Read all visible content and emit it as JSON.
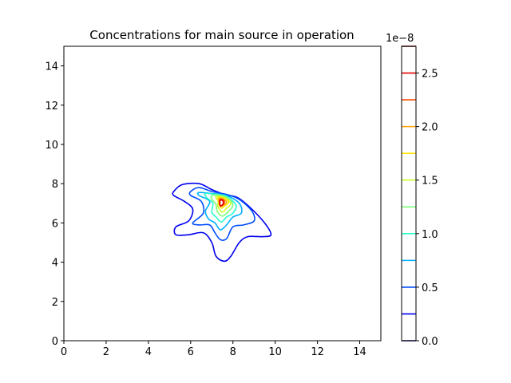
{
  "chart_data": {
    "type": "contour",
    "title": "Concentrations for main source in operation",
    "xlabel": "",
    "ylabel": "",
    "xlim": [
      0,
      15
    ],
    "ylim": [
      0,
      15
    ],
    "x_ticks": [
      0,
      2,
      4,
      6,
      8,
      10,
      12,
      14
    ],
    "y_ticks": [
      0,
      2,
      4,
      6,
      8,
      10,
      12,
      14
    ],
    "grid": false,
    "colorbar": {
      "offset_label": "1e−8",
      "ticks": [
        "0.0",
        "0.5",
        "1.0",
        "1.5",
        "2.0",
        "2.5"
      ],
      "tick_values": [
        0.0,
        0.5,
        1.0,
        1.5,
        2.0,
        2.5
      ],
      "range": [
        0.0,
        2.75
      ],
      "levels": [
        0.0,
        0.25,
        0.5,
        0.75,
        1.0,
        1.25,
        1.5,
        1.75,
        2.0,
        2.25,
        2.5,
        2.75
      ],
      "level_colors": [
        "#00007f",
        "#0000f1",
        "#004cff",
        "#00b0ff",
        "#29ffce",
        "#7dff7a",
        "#ceff29",
        "#ffe500",
        "#ffa100",
        "#ff4800",
        "#e40000",
        "#7f0000"
      ],
      "scale_multiplier": 1e-08
    },
    "series": [
      {
        "level": 0.25,
        "color": "#0000f1",
        "polygon": [
          [
            5.2,
            7.6
          ],
          [
            5.6,
            7.95
          ],
          [
            6.4,
            8.0
          ],
          [
            7.0,
            7.7
          ],
          [
            7.6,
            7.45
          ],
          [
            8.2,
            7.3
          ],
          [
            8.8,
            6.8
          ],
          [
            9.5,
            6.0
          ],
          [
            9.8,
            5.4
          ],
          [
            9.4,
            5.3
          ],
          [
            8.7,
            5.3
          ],
          [
            8.3,
            5.0
          ],
          [
            7.9,
            4.3
          ],
          [
            7.6,
            4.05
          ],
          [
            7.2,
            4.3
          ],
          [
            7.0,
            5.0
          ],
          [
            6.6,
            5.5
          ],
          [
            5.9,
            5.4
          ],
          [
            5.3,
            5.4
          ],
          [
            5.3,
            5.8
          ],
          [
            5.9,
            6.1
          ],
          [
            6.1,
            6.7
          ],
          [
            5.7,
            7.1
          ],
          [
            5.2,
            7.4
          ]
        ]
      },
      {
        "level": 0.5,
        "color": "#004cff",
        "polygon": [
          [
            6.0,
            7.6
          ],
          [
            6.4,
            7.8
          ],
          [
            7.0,
            7.6
          ],
          [
            7.7,
            7.45
          ],
          [
            8.3,
            7.2
          ],
          [
            8.9,
            6.6
          ],
          [
            9.0,
            6.1
          ],
          [
            8.5,
            5.9
          ],
          [
            8.0,
            5.8
          ],
          [
            7.7,
            5.2
          ],
          [
            7.4,
            5.15
          ],
          [
            7.15,
            5.5
          ],
          [
            6.9,
            5.9
          ],
          [
            6.4,
            5.9
          ],
          [
            6.1,
            6.0
          ],
          [
            6.6,
            6.5
          ],
          [
            6.5,
            7.1
          ],
          [
            6.0,
            7.4
          ]
        ]
      },
      {
        "level": 0.75,
        "color": "#00b0ff",
        "polygon": [
          [
            6.4,
            7.55
          ],
          [
            7.0,
            7.5
          ],
          [
            7.7,
            7.4
          ],
          [
            8.3,
            7.0
          ],
          [
            8.4,
            6.5
          ],
          [
            8.0,
            6.3
          ],
          [
            7.7,
            5.9
          ],
          [
            7.4,
            5.65
          ],
          [
            7.15,
            6.0
          ],
          [
            6.85,
            6.2
          ],
          [
            6.7,
            6.6
          ],
          [
            6.9,
            7.1
          ],
          [
            6.4,
            7.4
          ]
        ]
      },
      {
        "level": 1.0,
        "color": "#29ffce",
        "polygon": [
          [
            6.7,
            7.5
          ],
          [
            7.2,
            7.45
          ],
          [
            7.7,
            7.35
          ],
          [
            8.15,
            6.9
          ],
          [
            8.0,
            6.5
          ],
          [
            7.7,
            6.3
          ],
          [
            7.45,
            6.05
          ],
          [
            7.2,
            6.3
          ],
          [
            7.0,
            6.55
          ],
          [
            7.05,
            7.0
          ],
          [
            6.75,
            7.3
          ]
        ]
      },
      {
        "level": 1.25,
        "color": "#7dff7a",
        "polygon": [
          [
            7.0,
            7.4
          ],
          [
            7.4,
            7.4
          ],
          [
            7.8,
            7.25
          ],
          [
            8.0,
            6.9
          ],
          [
            7.8,
            6.6
          ],
          [
            7.5,
            6.35
          ],
          [
            7.25,
            6.6
          ],
          [
            7.2,
            6.95
          ],
          [
            7.0,
            7.2
          ]
        ]
      },
      {
        "level": 1.5,
        "color": "#ceff29",
        "polygon": [
          [
            7.2,
            7.35
          ],
          [
            7.6,
            7.3
          ],
          [
            7.9,
            7.0
          ],
          [
            7.7,
            6.75
          ],
          [
            7.5,
            6.55
          ],
          [
            7.3,
            6.8
          ],
          [
            7.3,
            7.1
          ]
        ]
      },
      {
        "level": 1.75,
        "color": "#ffe500",
        "polygon": [
          [
            7.3,
            7.3
          ],
          [
            7.6,
            7.25
          ],
          [
            7.8,
            7.05
          ],
          [
            7.6,
            6.85
          ],
          [
            7.45,
            6.75
          ],
          [
            7.35,
            6.95
          ],
          [
            7.3,
            7.15
          ]
        ]
      },
      {
        "level": 2.0,
        "color": "#ffa100",
        "polygon": [
          [
            7.35,
            7.25
          ],
          [
            7.55,
            7.2
          ],
          [
            7.7,
            7.05
          ],
          [
            7.55,
            6.9
          ],
          [
            7.42,
            6.85
          ],
          [
            7.36,
            7.0
          ]
        ]
      },
      {
        "level": 2.25,
        "color": "#ff4800",
        "polygon": [
          [
            7.38,
            7.2
          ],
          [
            7.52,
            7.2
          ],
          [
            7.6,
            7.05
          ],
          [
            7.5,
            6.9
          ],
          [
            7.4,
            6.85
          ],
          [
            7.36,
            7.0
          ]
        ]
      },
      {
        "level": 2.5,
        "color": "#e40000",
        "polygon": [
          [
            7.4,
            7.15
          ],
          [
            7.5,
            7.15
          ],
          [
            7.55,
            7.03
          ],
          [
            7.48,
            6.9
          ],
          [
            7.4,
            6.9
          ],
          [
            7.38,
            7.02
          ]
        ]
      }
    ]
  }
}
